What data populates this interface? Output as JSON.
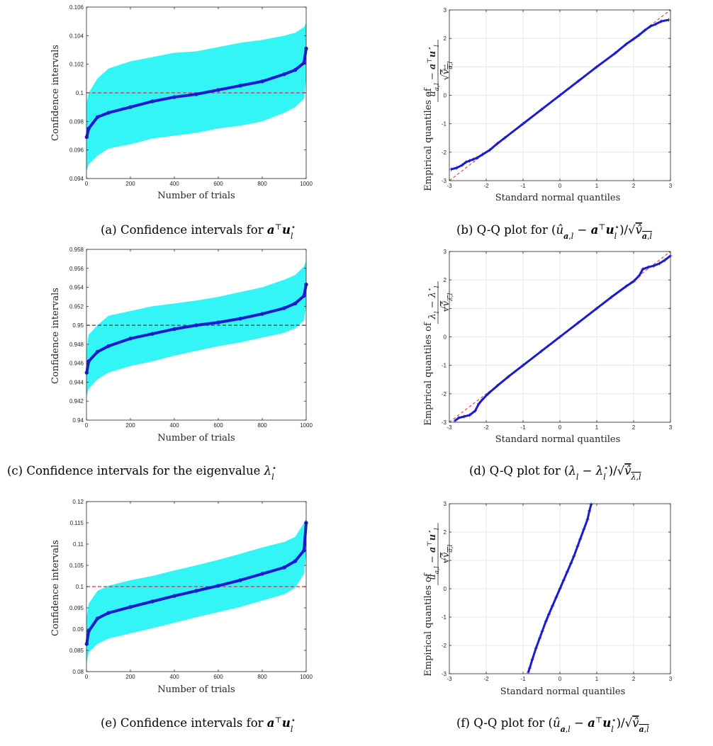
{
  "colors": {
    "band": "#33f5f5",
    "estimate": "#1a1ad0",
    "reference": "#e03030",
    "qq_marker": "#1a1ad0",
    "grid": "#e2e2e2"
  },
  "chart_data": [
    {
      "id": "a",
      "type": "area",
      "xlabel": "Number of trials",
      "ylabel": "Confidence intervals",
      "xlim": [
        0,
        1000
      ],
      "ylim": [
        0.094,
        0.106
      ],
      "xticks": [
        0,
        200,
        400,
        600,
        800,
        1000
      ],
      "yticks": [
        "0.094",
        "0.096",
        "0.098",
        "0.1",
        "0.102",
        "0.104",
        "0.106"
      ],
      "reference_line": 0.1,
      "reference_color": "#e03030",
      "series": [
        {
          "role": "estimate",
          "x": [
            1,
            10,
            50,
            100,
            200,
            300,
            400,
            500,
            600,
            700,
            800,
            900,
            950,
            990,
            1000
          ],
          "values": [
            0.0969,
            0.0975,
            0.0983,
            0.0986,
            0.099,
            0.0994,
            0.0997,
            0.0999,
            0.1002,
            0.1005,
            0.1008,
            0.1013,
            0.1016,
            0.1021,
            0.1031
          ]
        },
        {
          "role": "band_upper",
          "x": [
            1,
            10,
            50,
            100,
            200,
            300,
            400,
            500,
            600,
            700,
            800,
            900,
            950,
            990,
            1000
          ],
          "values": [
            0.0993,
            0.1,
            0.101,
            0.1017,
            0.1022,
            0.1025,
            0.1028,
            0.1029,
            0.1032,
            0.1035,
            0.1037,
            0.104,
            0.1042,
            0.1046,
            0.1049
          ]
        },
        {
          "role": "band_lower",
          "x": [
            1,
            10,
            50,
            100,
            200,
            300,
            400,
            500,
            600,
            700,
            800,
            900,
            950,
            990,
            1000
          ],
          "values": [
            0.0945,
            0.095,
            0.0956,
            0.0961,
            0.0964,
            0.0968,
            0.097,
            0.0972,
            0.0975,
            0.0977,
            0.098,
            0.0986,
            0.099,
            0.0996,
            0.101
          ]
        }
      ]
    },
    {
      "id": "b",
      "type": "scatter",
      "xlabel": "Standard normal quantiles",
      "ylabel": "Empirical quantiles of",
      "xlim": [
        -3,
        3
      ],
      "ylim": [
        -3,
        3
      ],
      "xticks": [
        -3,
        -2,
        -1,
        0,
        1,
        2,
        3
      ],
      "yticks": [
        -3,
        -2,
        -1,
        0,
        1,
        2,
        3
      ],
      "grid": true,
      "reference_line": "y = x",
      "reference_color": "#e03030",
      "points": [
        [
          -2.95,
          -2.6
        ],
        [
          -2.8,
          -2.55
        ],
        [
          -2.65,
          -2.45
        ],
        [
          -2.55,
          -2.35
        ],
        [
          -2.45,
          -2.3
        ],
        [
          -2.35,
          -2.25
        ],
        [
          -2.25,
          -2.2
        ],
        [
          -2.1,
          -2.08
        ],
        [
          -1.9,
          -1.92
        ],
        [
          -1.7,
          -1.7
        ],
        [
          -1.5,
          -1.5
        ],
        [
          -1.0,
          -1.0
        ],
        [
          -0.5,
          -0.5
        ],
        [
          0.0,
          0.0
        ],
        [
          0.5,
          0.5
        ],
        [
          1.0,
          1.0
        ],
        [
          1.5,
          1.48
        ],
        [
          1.8,
          1.8
        ],
        [
          2.0,
          1.98
        ],
        [
          2.15,
          2.12
        ],
        [
          2.3,
          2.28
        ],
        [
          2.45,
          2.42
        ],
        [
          2.6,
          2.5
        ],
        [
          2.75,
          2.6
        ],
        [
          2.95,
          2.65
        ]
      ]
    },
    {
      "id": "c",
      "type": "area",
      "xlabel": "Number of trials",
      "ylabel": "Confidence intervals",
      "xlim": [
        0,
        1000
      ],
      "ylim": [
        0.94,
        0.958
      ],
      "xticks": [
        0,
        200,
        400,
        600,
        800,
        1000
      ],
      "yticks": [
        "0.94",
        "0.942",
        "0.944",
        "0.946",
        "0.948",
        "0.95",
        "0.952",
        "0.954",
        "0.956",
        "0.958"
      ],
      "reference_line": 0.95,
      "reference_color": "#404040",
      "series": [
        {
          "role": "estimate",
          "x": [
            1,
            10,
            50,
            100,
            200,
            300,
            400,
            500,
            600,
            700,
            800,
            900,
            950,
            990,
            1000
          ],
          "values": [
            0.945,
            0.9462,
            0.9472,
            0.9478,
            0.9486,
            0.9491,
            0.9496,
            0.95,
            0.9503,
            0.9507,
            0.9512,
            0.9518,
            0.9523,
            0.9531,
            0.9543
          ]
        },
        {
          "role": "band_upper",
          "x": [
            1,
            10,
            50,
            100,
            200,
            300,
            400,
            500,
            600,
            700,
            800,
            900,
            950,
            990,
            1000
          ],
          "values": [
            0.9475,
            0.949,
            0.95,
            0.951,
            0.9515,
            0.952,
            0.9523,
            0.9526,
            0.953,
            0.9535,
            0.954,
            0.9548,
            0.9553,
            0.9562,
            0.9568
          ]
        },
        {
          "role": "band_lower",
          "x": [
            1,
            10,
            50,
            100,
            200,
            300,
            400,
            500,
            600,
            700,
            800,
            900,
            950,
            990,
            1000
          ],
          "values": [
            0.9425,
            0.9433,
            0.9443,
            0.945,
            0.9457,
            0.9462,
            0.9468,
            0.9473,
            0.9478,
            0.9482,
            0.9487,
            0.9492,
            0.9497,
            0.9505,
            0.952
          ]
        }
      ]
    },
    {
      "id": "d",
      "type": "scatter",
      "xlabel": "Standard normal quantiles",
      "ylabel": "Empirical quantiles of",
      "xlim": [
        -3,
        3
      ],
      "ylim": [
        -3,
        3
      ],
      "xticks": [
        -3,
        -2,
        -1,
        0,
        1,
        2,
        3
      ],
      "yticks": [
        -3,
        -2,
        -1,
        0,
        1,
        2,
        3
      ],
      "grid": true,
      "reference_line": "y = x",
      "reference_color": "#e03030",
      "points": [
        [
          -2.85,
          -2.95
        ],
        [
          -2.75,
          -2.85
        ],
        [
          -2.6,
          -2.8
        ],
        [
          -2.45,
          -2.75
        ],
        [
          -2.3,
          -2.6
        ],
        [
          -2.2,
          -2.35
        ],
        [
          -2.1,
          -2.2
        ],
        [
          -1.95,
          -2.0
        ],
        [
          -1.7,
          -1.72
        ],
        [
          -1.4,
          -1.4
        ],
        [
          -1.0,
          -1.0
        ],
        [
          -0.5,
          -0.5
        ],
        [
          0.0,
          0.0
        ],
        [
          0.5,
          0.5
        ],
        [
          1.0,
          1.0
        ],
        [
          1.4,
          1.4
        ],
        [
          1.8,
          1.78
        ],
        [
          2.0,
          1.95
        ],
        [
          2.15,
          2.15
        ],
        [
          2.25,
          2.38
        ],
        [
          2.4,
          2.45
        ],
        [
          2.55,
          2.5
        ],
        [
          2.7,
          2.58
        ],
        [
          2.85,
          2.7
        ],
        [
          3.0,
          2.85
        ]
      ]
    },
    {
      "id": "e",
      "type": "area",
      "xlabel": "Number of trials",
      "ylabel": "Confidence intervals",
      "xlim": [
        0,
        1000
      ],
      "ylim": [
        0.08,
        0.12
      ],
      "xticks": [
        0,
        200,
        400,
        600,
        800,
        1000
      ],
      "yticks": [
        "0.08",
        "0.085",
        "0.09",
        "0.095",
        "0.1",
        "0.105",
        "0.11",
        "0.115",
        "0.12"
      ],
      "reference_line": 0.1,
      "reference_color": "#e03030",
      "series": [
        {
          "role": "estimate",
          "x": [
            1,
            10,
            50,
            100,
            200,
            300,
            400,
            500,
            600,
            700,
            800,
            900,
            950,
            990,
            1000
          ],
          "values": [
            0.0865,
            0.0895,
            0.0925,
            0.0938,
            0.0952,
            0.0965,
            0.0978,
            0.099,
            0.1002,
            0.1015,
            0.103,
            0.1045,
            0.106,
            0.1085,
            0.115
          ]
        },
        {
          "role": "band_upper",
          "x": [
            1,
            10,
            50,
            100,
            200,
            300,
            400,
            500,
            600,
            700,
            800,
            900,
            950,
            990,
            1000
          ],
          "values": [
            0.093,
            0.096,
            0.099,
            0.1002,
            0.1015,
            0.1025,
            0.1038,
            0.105,
            0.1063,
            0.1077,
            0.1092,
            0.1105,
            0.1117,
            0.115,
            0.116
          ]
        },
        {
          "role": "band_lower",
          "x": [
            1,
            10,
            50,
            100,
            200,
            300,
            400,
            500,
            600,
            700,
            800,
            900,
            950,
            990,
            1000
          ],
          "values": [
            0.082,
            0.0845,
            0.0865,
            0.0878,
            0.089,
            0.0902,
            0.0915,
            0.0928,
            0.094,
            0.0952,
            0.0967,
            0.0982,
            0.0997,
            0.103,
            0.108
          ]
        }
      ]
    },
    {
      "id": "f",
      "type": "scatter",
      "xlabel": "Standard normal quantiles",
      "ylabel": "Empirical quantiles of",
      "xlim": [
        -3,
        3
      ],
      "ylim": [
        -3,
        3
      ],
      "xticks": [
        -3,
        -2,
        -1,
        0,
        1,
        2,
        3
      ],
      "yticks": [
        -3,
        -2,
        -1,
        0,
        1,
        2,
        3
      ],
      "grid": true,
      "points": [
        [
          -0.86,
          -2.95
        ],
        [
          -0.82,
          -2.8
        ],
        [
          -0.75,
          -2.5
        ],
        [
          -0.65,
          -2.1
        ],
        [
          -0.55,
          -1.75
        ],
        [
          -0.48,
          -1.5
        ],
        [
          -0.38,
          -1.15
        ],
        [
          -0.3,
          -0.9
        ],
        [
          -0.2,
          -0.6
        ],
        [
          -0.1,
          -0.3
        ],
        [
          0.0,
          0.0
        ],
        [
          0.1,
          0.3
        ],
        [
          0.2,
          0.6
        ],
        [
          0.3,
          0.9
        ],
        [
          0.38,
          1.15
        ],
        [
          0.48,
          1.5
        ],
        [
          0.55,
          1.75
        ],
        [
          0.65,
          2.1
        ],
        [
          0.75,
          2.45
        ],
        [
          0.8,
          2.75
        ],
        [
          0.85,
          2.98
        ]
      ]
    }
  ],
  "captions": {
    "a": {
      "label": "(a) Confidence intervals for"
    },
    "b": {
      "label": "(b) Q-Q plot for"
    },
    "c": {
      "label": "(c) Confidence intervals for the eigenvalue"
    },
    "d": {
      "label": "(d) Q-Q plot for"
    },
    "e": {
      "label": "(e) Confidence intervals for"
    },
    "f": {
      "label": "(f) Q-Q plot for"
    }
  }
}
